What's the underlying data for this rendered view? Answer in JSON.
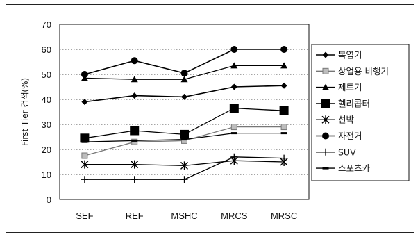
{
  "chart_data": {
    "type": "line",
    "categories": [
      "SEF",
      "REF",
      "MSHC",
      "MRCS",
      "MRSC"
    ],
    "ylabel": "First Tier 검색(%)",
    "ylim": [
      0,
      70
    ],
    "yticks": [
      0,
      10,
      20,
      30,
      40,
      50,
      60,
      70
    ],
    "grid": true,
    "legend_position": "right",
    "series": [
      {
        "name": "복엽기",
        "values": [
          39,
          41.5,
          41,
          45,
          45.5
        ],
        "marker": "diamond",
        "color": "#000000"
      },
      {
        "name": "상업용 비행기",
        "values": [
          17.5,
          23,
          23.5,
          29,
          29
        ],
        "marker": "square-light",
        "color": "#888888"
      },
      {
        "name": "제트기",
        "values": [
          48.5,
          48,
          48,
          53.5,
          53.5
        ],
        "marker": "triangle",
        "color": "#000000"
      },
      {
        "name": "헬리콥터",
        "values": [
          24.5,
          27.5,
          26,
          36.5,
          35.5
        ],
        "marker": "square-big",
        "color": "#000000"
      },
      {
        "name": "선박",
        "values": [
          14,
          14,
          13.5,
          15.5,
          15
        ],
        "marker": "asterisk",
        "color": "#000000"
      },
      {
        "name": "자전거",
        "values": [
          50,
          55.5,
          50.5,
          60,
          60
        ],
        "marker": "circle",
        "color": "#000000"
      },
      {
        "name": "SUV",
        "values": [
          8,
          8,
          8,
          17,
          16.5
        ],
        "marker": "plus",
        "color": "#000000"
      },
      {
        "name": "스포츠카",
        "values": [
          23,
          23.5,
          24,
          26.5,
          26.5
        ],
        "marker": "dash",
        "color": "#000000"
      }
    ]
  }
}
